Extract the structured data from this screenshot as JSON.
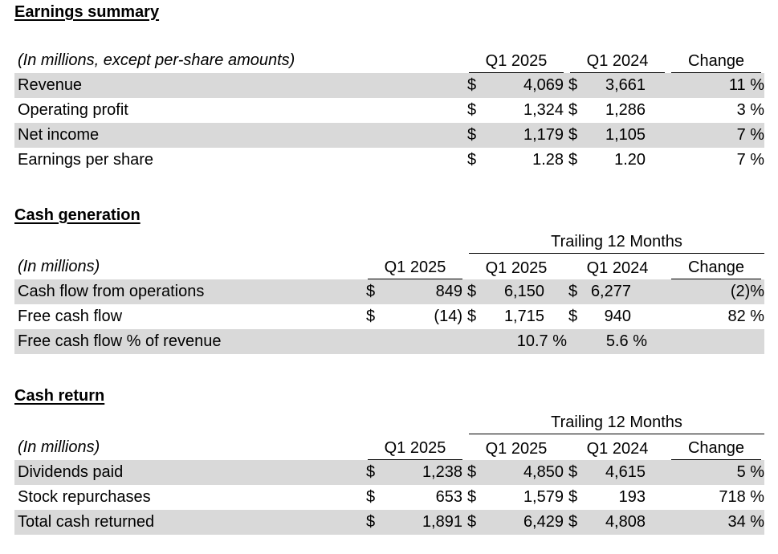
{
  "earnings": {
    "title": "Earnings summary",
    "header_label": "(In millions, except per-share amounts)",
    "col_q1_2025": "Q1 2025",
    "col_q1_2024": "Q1 2024",
    "col_change": "Change",
    "rows": [
      {
        "label": "Revenue",
        "cur1": "$",
        "v1": "4,069",
        "cur2": "$",
        "v2": "3,661",
        "change": "11 %"
      },
      {
        "label": "Operating profit",
        "cur1": "$",
        "v1": "1,324",
        "cur2": "$",
        "v2": "1,286",
        "change": "3 %"
      },
      {
        "label": "Net income",
        "cur1": "$",
        "v1": "1,179",
        "cur2": "$",
        "v2": "1,105",
        "change": "7 %"
      },
      {
        "label": "Earnings per share",
        "cur1": "$",
        "v1": "1.28",
        "cur2": "$",
        "v2": "1.20",
        "change": "7 %"
      }
    ]
  },
  "cashgen": {
    "title": "Cash generation",
    "trailing_label": "Trailing 12 Months",
    "header_label": "(In millions)",
    "col_q1_2025": "Q1 2025",
    "col_ttm_q1_2025": "Q1 2025",
    "col_ttm_q1_2024": "Q1 2024",
    "col_change": "Change",
    "rows": [
      {
        "label": "Cash flow from operations",
        "cur0": "$",
        "v0": "849",
        "cur1": "$",
        "v1": "6,150",
        "cur2": "$",
        "v2": "6,277",
        "change": "(2)%"
      },
      {
        "label": "Free cash flow",
        "cur0": "$",
        "v0": "(14)",
        "cur1": "$",
        "v1": "1,715",
        "cur2": "$",
        "v2": "940",
        "change": "82 %"
      },
      {
        "label": "Free cash flow % of revenue",
        "cur0": "",
        "v0": "",
        "cur1": "",
        "v1": "10.7 %",
        "cur2": "",
        "v2": "5.6 %",
        "change": ""
      }
    ]
  },
  "cashret": {
    "title": "Cash return",
    "trailing_label": "Trailing 12 Months",
    "header_label": "(In millions)",
    "col_q1_2025": "Q1 2025",
    "col_ttm_q1_2025": "Q1 2025",
    "col_ttm_q1_2024": "Q1 2024",
    "col_change": "Change",
    "rows": [
      {
        "label": "Dividends paid",
        "cur0": "$",
        "v0": "1,238",
        "cur1": "$",
        "v1": "4,850",
        "cur2": "$",
        "v2": "4,615",
        "change": "5 %"
      },
      {
        "label": "Stock repurchases",
        "cur0": "$",
        "v0": "653",
        "cur1": "$",
        "v1": "1,579",
        "cur2": "$",
        "v2": "193",
        "change": "718 %"
      },
      {
        "label": "Total cash returned",
        "cur0": "$",
        "v0": "1,891",
        "cur1": "$",
        "v1": "6,429",
        "cur2": "$",
        "v2": "4,808",
        "change": "34 %"
      }
    ]
  }
}
